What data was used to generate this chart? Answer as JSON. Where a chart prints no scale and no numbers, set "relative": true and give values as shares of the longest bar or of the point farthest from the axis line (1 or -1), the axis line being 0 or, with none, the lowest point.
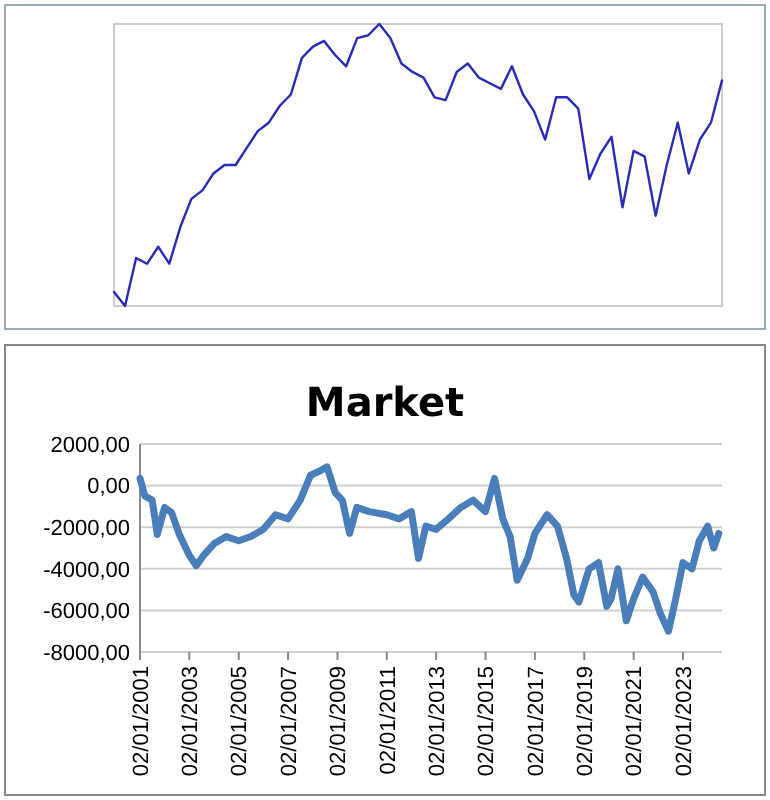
{
  "chart_data": [
    {
      "type": "line",
      "relative": true,
      "color": "#2a2ab8",
      "categories": [
        null,
        null,
        null,
        null,
        null,
        null,
        null,
        null,
        null,
        null,
        null,
        null,
        null,
        null,
        null,
        null,
        null,
        null,
        null,
        null,
        null,
        null,
        null,
        null,
        null,
        null,
        null,
        null,
        null,
        null,
        null,
        null,
        null,
        null,
        null,
        null,
        null,
        null,
        null,
        null,
        null,
        null,
        null,
        null,
        null,
        null,
        null,
        null,
        null,
        null,
        null,
        null,
        null,
        null,
        null,
        null
      ],
      "values": [
        0.05,
        0,
        0.17,
        0.15,
        0.21,
        0.15,
        0.28,
        0.38,
        0.41,
        0.47,
        0.5,
        0.5,
        0.56,
        0.62,
        0.65,
        0.71,
        0.75,
        0.88,
        0.92,
        0.94,
        0.89,
        0.85,
        0.95,
        0.96,
        1,
        0.95,
        0.86,
        0.83,
        0.81,
        0.74,
        0.73,
        0.83,
        0.86,
        0.81,
        0.79,
        0.77,
        0.85,
        0.75,
        0.69,
        0.59,
        0.74,
        0.74,
        0.7,
        0.45,
        0.54,
        0.6,
        0.35,
        0.55,
        0.53,
        0.32,
        0.5,
        0.65,
        0.47,
        0.59,
        0.65,
        0.8
      ]
    },
    {
      "type": "line",
      "title": "Market",
      "color": "#4a7ebb",
      "grid": "y",
      "x": [
        "2001-01-02",
        "2001-03-15",
        "2001-07-01",
        "2001-09-15",
        "2002-01-01",
        "2002-04-15",
        "2002-08-01",
        "2003-01-01",
        "2003-04-15",
        "2003-08-01",
        "2004-01-01",
        "2004-07-01",
        "2005-01-01",
        "2005-07-01",
        "2006-01-01",
        "2006-07-01",
        "2007-01-01",
        "2007-07-01",
        "2007-12-01",
        "2008-04-15",
        "2008-08-01",
        "2008-12-01",
        "2009-03-15",
        "2009-07-01",
        "2009-10-15",
        "2010-04-15",
        "2011-01-01",
        "2011-07-01",
        "2012-01-01",
        "2012-04-15",
        "2012-08-01",
        "2013-01-01",
        "2013-07-01",
        "2014-01-01",
        "2014-07-01",
        "2015-01-01",
        "2015-05-15",
        "2015-09-15",
        "2016-01-01",
        "2016-04-15",
        "2016-09-15",
        "2017-01-01",
        "2017-07-01",
        "2017-12-01",
        "2018-04-15",
        "2018-08-01",
        "2018-10-15",
        "2019-03-15",
        "2019-08-01",
        "2019-12-01",
        "2020-02-01",
        "2020-05-15",
        "2020-09-15",
        "2021-01-01",
        "2021-05-15",
        "2021-10-15",
        "2022-02-01",
        "2022-06-01",
        "2022-09-15",
        "2023-01-01",
        "2023-05-15",
        "2023-09-01",
        "2024-01-01",
        "2024-04-01",
        "2024-06-15"
      ],
      "values": [
        350,
        -500,
        -700,
        -2350,
        -1050,
        -1300,
        -2300,
        -3350,
        -3850,
        -3350,
        -2800,
        -2450,
        -2650,
        -2450,
        -2100,
        -1400,
        -1600,
        -700,
        500,
        700,
        900,
        -350,
        -700,
        -2300,
        -1050,
        -1250,
        -1400,
        -1600,
        -1250,
        -3500,
        -1950,
        -2100,
        -1600,
        -1050,
        -700,
        -1250,
        350,
        -1600,
        -2450,
        -4550,
        -3500,
        -2300,
        -1400,
        -1950,
        -3500,
        -5250,
        -5600,
        -4000,
        -3700,
        -5800,
        -5450,
        -4000,
        -6500,
        -5450,
        -4400,
        -5100,
        -6150,
        -7000,
        -5450,
        -3700,
        -4000,
        -2650,
        -1950,
        -3000,
        -2300
      ],
      "xlim": [
        "2001-01-02",
        "2024-08-01"
      ],
      "xticks": [
        {
          "value": "2001-01-02",
          "label": "02/01/2001"
        },
        {
          "value": "2003-01-02",
          "label": "02/01/2003"
        },
        {
          "value": "2005-01-02",
          "label": "02/01/2005"
        },
        {
          "value": "2007-01-02",
          "label": "02/01/2007"
        },
        {
          "value": "2009-01-02",
          "label": "02/01/2009"
        },
        {
          "value": "2011-01-02",
          "label": "02/01/2011"
        },
        {
          "value": "2013-01-02",
          "label": "02/01/2013"
        },
        {
          "value": "2015-01-02",
          "label": "02/01/2015"
        },
        {
          "value": "2017-01-02",
          "label": "02/01/2017"
        },
        {
          "value": "2019-01-02",
          "label": "02/01/2019"
        },
        {
          "value": "2021-01-02",
          "label": "02/01/2021"
        },
        {
          "value": "2023-01-02",
          "label": "02/01/2023"
        }
      ],
      "ylim": [
        -8000,
        2000
      ],
      "yticks": [
        {
          "value": 2000,
          "label": "2000,00"
        },
        {
          "value": 0,
          "label": "0,00"
        },
        {
          "value": -2000,
          "label": "-2000,00"
        },
        {
          "value": -4000,
          "label": "-4000,00"
        },
        {
          "value": -6000,
          "label": "-6000,00"
        },
        {
          "value": -8000,
          "label": "-8000,00"
        }
      ]
    }
  ]
}
